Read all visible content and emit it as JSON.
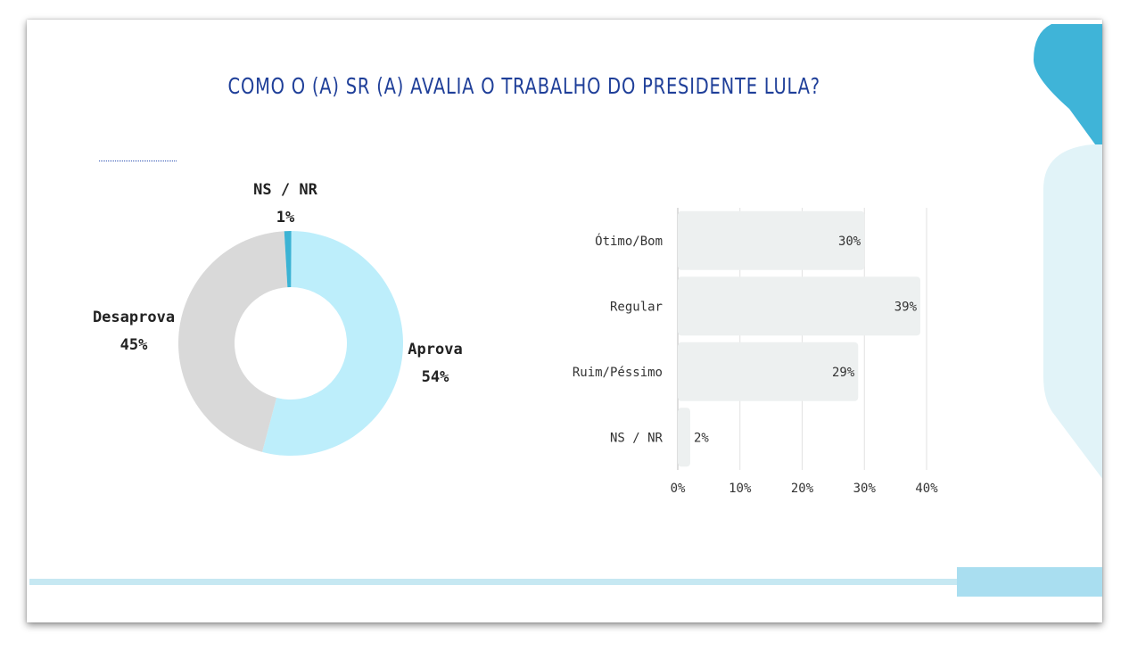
{
  "title": "COMO O (A) SR (A) AVALIA O TRABALHO DO PRESIDENTE LULA?",
  "chart_data": [
    {
      "type": "pie",
      "subtype": "donut",
      "categories": [
        "Aprova",
        "Desaprova",
        "NS / NR"
      ],
      "values": [
        54,
        45,
        1
      ],
      "value_labels": [
        "54%",
        "45%",
        "1%"
      ],
      "colors": [
        "#bdeefb",
        "#d9d9d9",
        "#3bb3d4"
      ]
    },
    {
      "type": "bar",
      "orientation": "horizontal",
      "categories": [
        "Ótimo/Bom",
        "Regular",
        "Ruim/Péssimo",
        "NS / NR"
      ],
      "values": [
        30,
        39,
        29,
        2
      ],
      "value_labels": [
        "30%",
        "39%",
        "29%",
        "2%"
      ],
      "xlim": [
        0,
        40
      ],
      "xticks": [
        "0%",
        "10%",
        "20%",
        "30%",
        "40%"
      ],
      "grid": true,
      "bar_color": "#edf0f0"
    }
  ]
}
